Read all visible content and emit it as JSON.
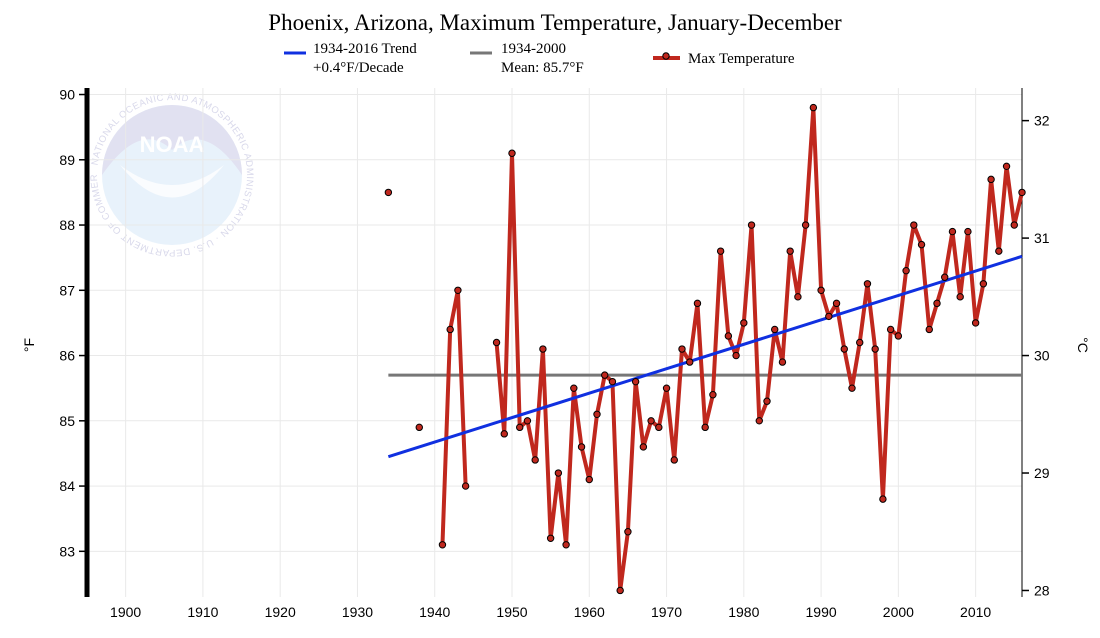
{
  "chart_data": {
    "type": "line",
    "title": "Phoenix, Arizona, Maximum Temperature, January-December",
    "ylabel_left": "°F",
    "ylabel_right": "°C",
    "xlim": [
      1895,
      2016
    ],
    "ylim": [
      82.3,
      90.1
    ],
    "x_ticks": [
      "1900",
      "1910",
      "1920",
      "1930",
      "1940",
      "1950",
      "1960",
      "1970",
      "1980",
      "1990",
      "2000",
      "2010"
    ],
    "y_ticks_f": [
      "83",
      "84",
      "85",
      "86",
      "87",
      "88",
      "89",
      "90"
    ],
    "y_ticks_c": [
      "28",
      "29",
      "30",
      "31",
      "32"
    ],
    "grid": true,
    "legend_position": "top",
    "legend": {
      "trend_line1": "1934-2016 Trend",
      "trend_line2": "+0.4°F/Decade",
      "mean_line1": "1934-2000",
      "mean_line2": "Mean: 85.7°F",
      "series": "Max Temperature"
    },
    "trend": {
      "x": [
        1934,
        2016
      ],
      "y": [
        84.45,
        87.52
      ],
      "color": "#1030e0"
    },
    "mean": {
      "x": [
        1934,
        2016
      ],
      "y": [
        85.7,
        85.7
      ],
      "color": "#777777"
    },
    "series_color": "#c0281e",
    "points": [
      [
        1934,
        88.5
      ],
      [
        1938,
        84.9
      ],
      [
        1941,
        83.1
      ],
      [
        1942,
        86.4
      ],
      [
        1943,
        87.0
      ],
      [
        1944,
        84.0
      ],
      [
        1948,
        86.2
      ],
      [
        1949,
        84.8
      ],
      [
        1950,
        89.1
      ],
      [
        1951,
        84.9
      ],
      [
        1952,
        85.0
      ],
      [
        1953,
        84.4
      ],
      [
        1954,
        86.1
      ],
      [
        1955,
        83.2
      ],
      [
        1956,
        84.2
      ],
      [
        1957,
        83.1
      ],
      [
        1958,
        85.5
      ],
      [
        1959,
        84.6
      ],
      [
        1960,
        84.1
      ],
      [
        1961,
        85.1
      ],
      [
        1962,
        85.7
      ],
      [
        1963,
        85.6
      ],
      [
        1964,
        82.4
      ],
      [
        1965,
        83.3
      ],
      [
        1966,
        85.6
      ],
      [
        1967,
        84.6
      ],
      [
        1968,
        85.0
      ],
      [
        1969,
        84.9
      ],
      [
        1970,
        85.5
      ],
      [
        1971,
        84.4
      ],
      [
        1972,
        86.1
      ],
      [
        1973,
        85.9
      ],
      [
        1974,
        86.8
      ],
      [
        1975,
        84.9
      ],
      [
        1976,
        85.4
      ],
      [
        1977,
        87.6
      ],
      [
        1978,
        86.3
      ],
      [
        1979,
        86.0
      ],
      [
        1980,
        86.5
      ],
      [
        1981,
        88.0
      ],
      [
        1982,
        85.0
      ],
      [
        1983,
        85.3
      ],
      [
        1984,
        86.4
      ],
      [
        1985,
        85.9
      ],
      [
        1986,
        87.6
      ],
      [
        1987,
        86.9
      ],
      [
        1988,
        88.0
      ],
      [
        1989,
        89.8
      ],
      [
        1990,
        87.0
      ],
      [
        1991,
        86.6
      ],
      [
        1992,
        86.8
      ],
      [
        1993,
        86.1
      ],
      [
        1994,
        85.5
      ],
      [
        1995,
        86.2
      ],
      [
        1996,
        87.1
      ],
      [
        1997,
        86.1
      ],
      [
        1998,
        83.8
      ],
      [
        1999,
        86.4
      ],
      [
        2000,
        86.3
      ],
      [
        2001,
        87.3
      ],
      [
        2002,
        88.0
      ],
      [
        2003,
        87.7
      ],
      [
        2004,
        86.4
      ],
      [
        2005,
        86.8
      ],
      [
        2006,
        87.2
      ],
      [
        2007,
        87.9
      ],
      [
        2008,
        86.9
      ],
      [
        2009,
        87.9
      ],
      [
        2010,
        86.5
      ],
      [
        2011,
        87.1
      ],
      [
        2012,
        88.7
      ],
      [
        2013,
        87.6
      ],
      [
        2014,
        88.9
      ],
      [
        2015,
        88.0
      ],
      [
        2016,
        88.5
      ]
    ]
  },
  "logo": {
    "letters": "NOAA",
    "ring_text": "NATIONAL OCEANIC AND ATMOSPHERIC ADMINISTRATION · U.S. DEPARTMENT OF COMMERCE"
  }
}
